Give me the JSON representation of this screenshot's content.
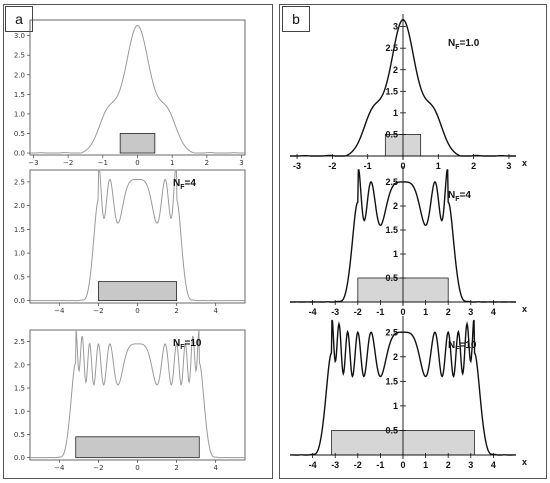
{
  "panels": {
    "a": {
      "label": "a"
    },
    "b": {
      "label": "b"
    }
  },
  "colors": {
    "curve_a": "#9a9a9a",
    "curve_b": "#111111",
    "aperture_fill_a": "#c8c8c8",
    "aperture_fill_b": "#d6d6d6"
  },
  "chart_data": [
    {
      "type": "line",
      "panel": "a",
      "row": 1,
      "nf": null,
      "nf_label": "",
      "x_ticks": [
        "-3",
        "-2",
        "-1",
        "0",
        "1",
        "2",
        "3"
      ],
      "y_ticks": [
        "0.0",
        "0.5",
        "1.0",
        "1.5",
        "2.0",
        "2.5",
        "3.0"
      ],
      "xlim": [
        -3.1,
        3.1
      ],
      "ylim": [
        -0.05,
        3.4
      ],
      "aperture": {
        "x": [
          -0.5,
          0.5
        ],
        "height": 0.5
      },
      "peak": 3.2
    },
    {
      "type": "line",
      "panel": "a",
      "row": 2,
      "nf": 4,
      "nf_label": "N",
      "nf_sub": "F",
      "nf_eq": "=4",
      "x_ticks": [
        "-4",
        "-2",
        "0",
        "2",
        "4"
      ],
      "y_ticks": [
        "0.0",
        "0.5",
        "1.0",
        "1.5",
        "2.0",
        "2.5"
      ],
      "xlim": [
        -5.5,
        5.5
      ],
      "ylim": [
        -0.05,
        2.75
      ],
      "aperture": {
        "x": [
          -2,
          2
        ],
        "height": 0.4
      },
      "peak": 2.55
    },
    {
      "type": "line",
      "panel": "a",
      "row": 3,
      "nf": 10,
      "nf_label": "N",
      "nf_sub": "F",
      "nf_eq": "=10",
      "x_ticks": [
        "-4",
        "-2",
        "0",
        "2",
        "4"
      ],
      "y_ticks": [
        "0.0",
        "0.5",
        "1.0",
        "1.5",
        "2.0",
        "2.5"
      ],
      "xlim": [
        -5.5,
        5.5
      ],
      "ylim": [
        -0.05,
        2.75
      ],
      "aperture": {
        "x": [
          -3.16,
          3.16
        ],
        "height": 0.45
      },
      "peak": 2.45
    },
    {
      "type": "line",
      "panel": "b",
      "row": 1,
      "nf": 1.0,
      "nf_label": "N",
      "nf_sub": "F",
      "nf_eq": "=1.0",
      "x_ticks": [
        "-3",
        "-2",
        "-1",
        "0",
        "1",
        "2",
        "3"
      ],
      "y_ticks": [
        "0.5",
        "1",
        "1.5",
        "2",
        "2.5",
        "3"
      ],
      "x_axis_label": "x",
      "xlim": [
        -3.2,
        3.2
      ],
      "ylim": [
        0,
        3.2
      ],
      "aperture": {
        "x": [
          -0.5,
          0.5
        ],
        "height": 0.5
      },
      "peak": 3.1
    },
    {
      "type": "line",
      "panel": "b",
      "row": 2,
      "nf": 4,
      "nf_label": "N",
      "nf_sub": "F",
      "nf_eq": "=4",
      "x_ticks": [
        "-4",
        "-3",
        "-2",
        "-1",
        "0",
        "1",
        "2",
        "3",
        "4"
      ],
      "y_ticks": [
        "0.5",
        "1",
        "1.5",
        "2",
        "2.5"
      ],
      "x_axis_label": "x",
      "xlim": [
        -5.0,
        5.0
      ],
      "ylim": [
        0,
        2.75
      ],
      "aperture": {
        "x": [
          -2,
          2
        ],
        "height": 0.5
      },
      "peak": 2.5
    },
    {
      "type": "line",
      "panel": "b",
      "row": 3,
      "nf": 10,
      "nf_label": "N",
      "nf_sub": "F",
      "nf_eq": "=10",
      "x_ticks": [
        "-4",
        "-3",
        "-2",
        "-1",
        "0",
        "1",
        "2",
        "3",
        "4"
      ],
      "y_ticks": [
        "0.5",
        "1",
        "1.5",
        "2",
        "2.5"
      ],
      "x_axis_label": "x",
      "xlim": [
        -5.0,
        5.0
      ],
      "ylim": [
        0,
        2.75
      ],
      "aperture": {
        "x": [
          -3.16,
          3.16
        ],
        "height": 0.5
      },
      "peak": 2.5
    }
  ]
}
